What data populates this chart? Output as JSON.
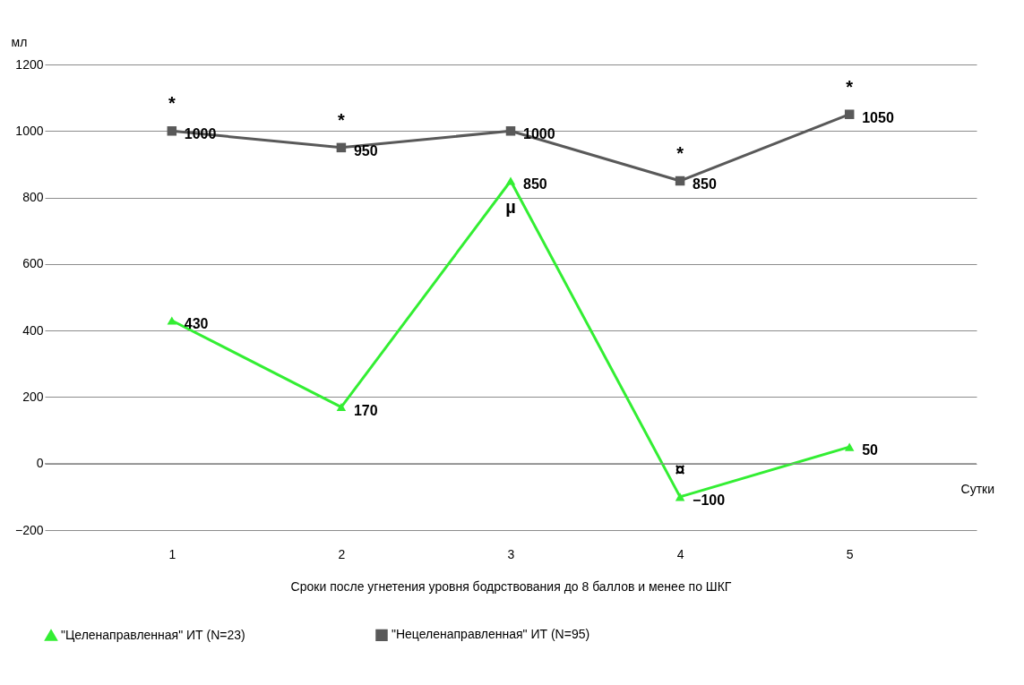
{
  "chart_data": {
    "type": "line",
    "xlabel": "Сроки  после угнетения уровня бодрствования до 8 баллов и менее по ШКГ",
    "ylabel": "мл",
    "categories": [
      "1",
      "2",
      "3",
      "4",
      "5"
    ],
    "series": [
      {
        "name": "\"Целенаправленная\" ИТ (N=23)",
        "color": "#33ee33",
        "marker": "triangle",
        "values": [
          430,
          170,
          850,
          -100,
          50
        ]
      },
      {
        "name": "\"Нецеленаправленная\" ИТ (N=95)",
        "color": "#595959",
        "marker": "square",
        "values": [
          1000,
          950,
          1000,
          850,
          1050
        ]
      }
    ],
    "ylim": [
      -200,
      1200
    ],
    "yticks": [
      -200,
      0,
      200,
      400,
      600,
      800,
      1000,
      1200
    ],
    "grid": "y",
    "legend": "bottom",
    "data_labels": true,
    "annotations": [
      {
        "text": "*",
        "x": "1",
        "y": 1000
      },
      {
        "text": "*",
        "x": "2",
        "y": 950
      },
      {
        "text": "*",
        "x": "4",
        "y": 850
      },
      {
        "text": "*",
        "x": "5",
        "y": 1050
      },
      {
        "text": "µ",
        "x": "3",
        "y": 850
      },
      {
        "text": "¤",
        "x": "4",
        "y": -100
      },
      "Сутки"
    ]
  }
}
